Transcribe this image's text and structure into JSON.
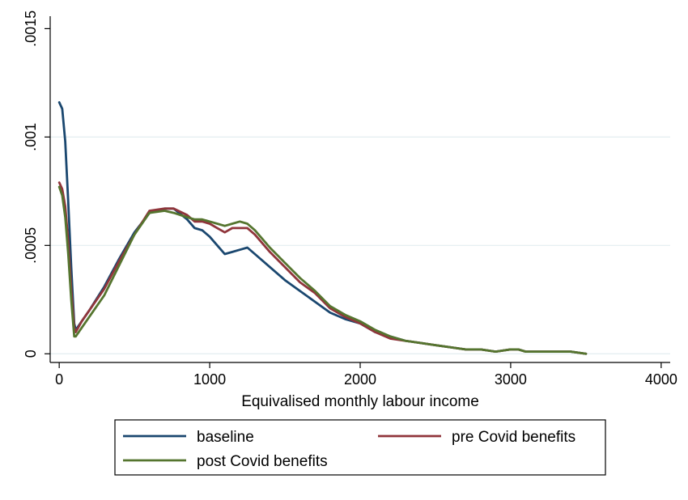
{
  "chart_data": {
    "type": "line",
    "xlabel": "Equivalised monthly labour income",
    "ylabel": "",
    "xlim": [
      -60,
      4060
    ],
    "ylim": [
      -4e-05,
      0.00155
    ],
    "x_ticks": [
      0,
      1000,
      2000,
      3000,
      4000
    ],
    "x_tick_labels": [
      "0",
      "1000",
      "2000",
      "3000",
      "4000"
    ],
    "y_ticks": [
      0,
      0.0005,
      0.001,
      0.0015
    ],
    "y_tick_labels": [
      "0",
      ".0005",
      ".001",
      ".0015"
    ],
    "grid": "horizontal",
    "legend_position": "bottom",
    "series": [
      {
        "name": "baseline",
        "color": "#1a476f",
        "x": [
          0,
          20,
          40,
          60,
          80,
          100,
          110,
          150,
          200,
          300,
          400,
          500,
          600,
          700,
          760,
          850,
          900,
          950,
          1000,
          1050,
          1100,
          1150,
          1200,
          1250,
          1300,
          1400,
          1500,
          1600,
          1700,
          1800,
          1900,
          2000,
          2100,
          2200,
          2300,
          2400,
          2500,
          2600,
          2700,
          2800,
          2900,
          3000,
          3050,
          3100,
          3200,
          3300,
          3400,
          3500
        ],
        "y": [
          0.00116,
          0.00113,
          0.00098,
          0.0007,
          0.0004,
          0.00014,
          0.00011,
          0.00015,
          0.0002,
          0.00031,
          0.00044,
          0.00056,
          0.00065,
          0.00067,
          0.00067,
          0.00062,
          0.00058,
          0.00057,
          0.00054,
          0.0005,
          0.00046,
          0.00047,
          0.00048,
          0.00049,
          0.00046,
          0.0004,
          0.00034,
          0.00029,
          0.00024,
          0.00019,
          0.00016,
          0.00014,
          0.0001,
          8e-05,
          6e-05,
          5e-05,
          4e-05,
          3e-05,
          2e-05,
          2e-05,
          1e-05,
          2e-05,
          2e-05,
          1e-05,
          1e-05,
          1e-05,
          1e-05,
          0.0
        ],
        "width": 2.8
      },
      {
        "name": "pre Covid benefits",
        "color": "#90353b",
        "x": [
          0,
          20,
          40,
          60,
          80,
          100,
          110,
          150,
          200,
          300,
          400,
          500,
          600,
          700,
          760,
          850,
          900,
          950,
          1000,
          1050,
          1100,
          1150,
          1200,
          1250,
          1300,
          1400,
          1500,
          1600,
          1700,
          1800,
          1900,
          2000,
          2100,
          2200,
          2300,
          2400,
          2500,
          2600,
          2700,
          2800,
          2900,
          3000,
          3050,
          3100,
          3200,
          3300,
          3400,
          3500
        ],
        "y": [
          0.00079,
          0.00076,
          0.00068,
          0.00052,
          0.0003,
          0.00012,
          0.0001,
          0.00015,
          0.0002,
          0.0003,
          0.00043,
          0.00055,
          0.00066,
          0.00067,
          0.00067,
          0.00064,
          0.00061,
          0.00061,
          0.0006,
          0.00058,
          0.00056,
          0.00058,
          0.00058,
          0.00058,
          0.00055,
          0.00047,
          0.0004,
          0.00033,
          0.00028,
          0.00021,
          0.00017,
          0.00014,
          0.0001,
          7e-05,
          6e-05,
          5e-05,
          4e-05,
          3e-05,
          2e-05,
          2e-05,
          1e-05,
          2e-05,
          2e-05,
          1e-05,
          1e-05,
          1e-05,
          1e-05,
          0.0
        ],
        "width": 2.8
      },
      {
        "name": "post Covid benefits",
        "color": "#55752f",
        "x": [
          0,
          20,
          40,
          60,
          80,
          100,
          110,
          150,
          200,
          300,
          400,
          500,
          600,
          700,
          760,
          850,
          900,
          950,
          1000,
          1050,
          1100,
          1150,
          1200,
          1250,
          1300,
          1400,
          1500,
          1600,
          1700,
          1800,
          1900,
          2000,
          2100,
          2200,
          2300,
          2400,
          2500,
          2600,
          2700,
          2800,
          2900,
          3000,
          3050,
          3100,
          3200,
          3300,
          3400,
          3500
        ],
        "y": [
          0.00077,
          0.00073,
          0.00063,
          0.00046,
          0.00025,
          8e-05,
          8e-05,
          0.00012,
          0.00017,
          0.00027,
          0.00041,
          0.00055,
          0.00065,
          0.00066,
          0.00065,
          0.00063,
          0.00062,
          0.00062,
          0.00061,
          0.0006,
          0.00059,
          0.0006,
          0.00061,
          0.0006,
          0.00057,
          0.00049,
          0.00042,
          0.00035,
          0.00029,
          0.00022,
          0.00018,
          0.00015,
          0.00011,
          8e-05,
          6e-05,
          5e-05,
          4e-05,
          3e-05,
          2e-05,
          2e-05,
          1e-05,
          2e-05,
          2e-05,
          1e-05,
          1e-05,
          1e-05,
          1e-05,
          0.0
        ],
        "width": 2.8
      }
    ],
    "gridline_color": "#e3eef0",
    "legend_rows": [
      [
        "baseline",
        "pre Covid benefits"
      ],
      [
        "post Covid benefits"
      ]
    ]
  }
}
